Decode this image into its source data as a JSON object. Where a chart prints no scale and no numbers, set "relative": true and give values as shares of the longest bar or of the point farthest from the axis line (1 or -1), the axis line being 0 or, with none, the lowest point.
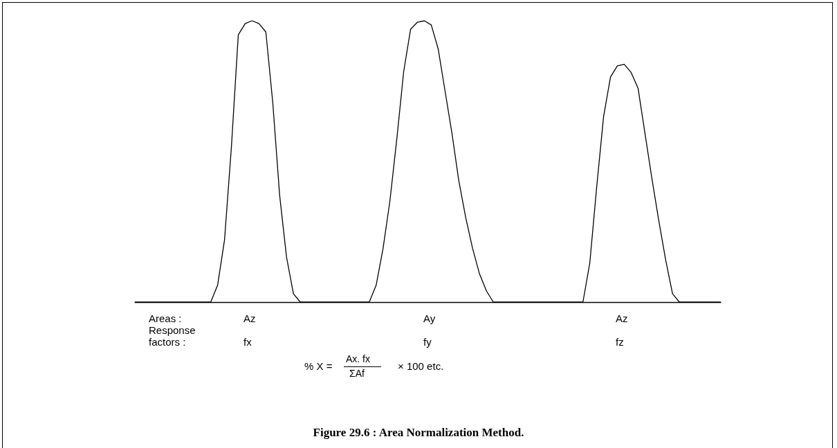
{
  "chart_data": {
    "type": "line",
    "relative": true,
    "title": "Figure 29.6 : Area Normalization Method.",
    "categories": [
      null,
      null,
      null,
      null,
      null,
      null,
      null,
      null,
      null,
      null,
      null,
      null,
      null,
      null,
      null,
      null,
      null,
      null,
      null,
      null,
      null,
      null,
      null,
      null,
      null,
      null,
      null,
      null,
      null,
      null,
      null,
      null,
      null,
      null,
      null,
      null,
      null,
      null,
      null,
      null,
      null,
      null,
      null,
      null,
      null,
      null,
      null,
      null,
      null,
      null,
      null,
      null,
      null,
      null,
      null,
      null,
      null,
      null,
      null,
      null,
      null,
      null,
      null,
      null,
      null,
      null,
      null,
      null,
      null,
      null,
      null,
      null,
      null,
      null,
      null,
      null,
      null,
      null,
      null,
      null,
      null,
      null,
      null,
      null,
      null,
      null
    ],
    "series": [
      {
        "color": "#000000",
        "values": [
          0,
          0,
          0,
          0,
          0,
          0,
          0,
          0,
          0,
          0,
          0,
          0,
          0.06,
          0.22,
          0.55,
          0.95,
          0.99,
          1,
          0.99,
          0.96,
          0.71,
          0.38,
          0.16,
          0.03,
          0,
          0,
          0,
          0,
          0,
          0,
          0,
          0,
          0,
          0,
          0,
          0.06,
          0.19,
          0.36,
          0.58,
          0.82,
          0.97,
          0.995,
          1,
          0.985,
          0.9,
          0.75,
          0.6,
          0.43,
          0.3,
          0.19,
          0.1,
          0.04,
          0,
          0,
          0,
          0,
          0,
          0,
          0,
          0,
          0,
          0,
          0,
          0,
          0,
          0,
          0.14,
          0.41,
          0.66,
          0.8,
          0.84,
          0.845,
          0.816,
          0.76,
          0.6,
          0.44,
          0.29,
          0.15,
          0.03,
          0,
          0,
          0,
          0,
          0,
          0,
          0
        ]
      }
    ],
    "marker": "none",
    "line_style": "solid",
    "grid": false,
    "annotations": [
      "Areas :",
      "Az",
      "Ay",
      "Az",
      "Response\nfactors :",
      "fx",
      "fy",
      "fz",
      "% X =",
      "Ax. fx",
      "ΣAf",
      "× 100 etc."
    ]
  }
}
